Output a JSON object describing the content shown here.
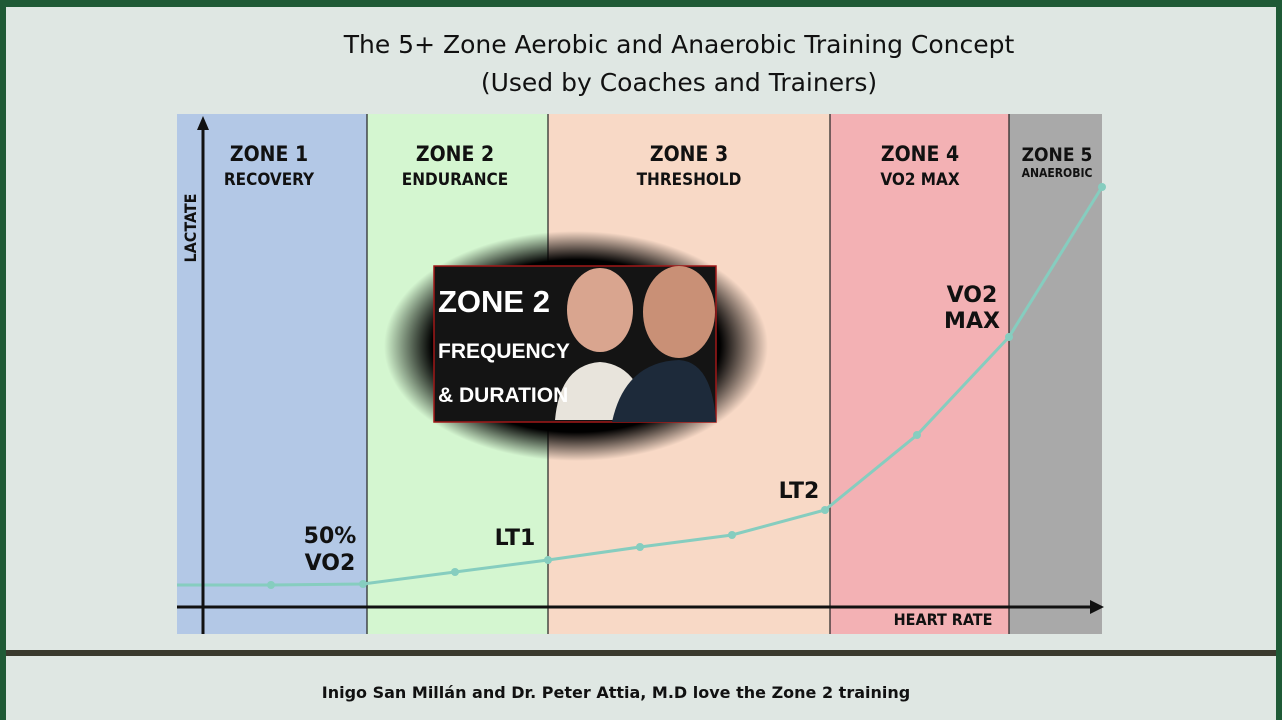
{
  "header": {
    "title": "The 5+ Zone Aerobic and Anaerobic Training Concept",
    "subtitle": "(Used by Coaches and Trainers)"
  },
  "diagram": {
    "y_axis_label": "LACTATE",
    "x_axis_label": "HEART RATE",
    "zones": [
      {
        "name": "ZONE 1",
        "label": "RECOVERY"
      },
      {
        "name": "ZONE 2",
        "label": "ENDURANCE"
      },
      {
        "name": "ZONE 3",
        "label": "THRESHOLD"
      },
      {
        "name": "ZONE 4",
        "label": "VO2 MAX"
      },
      {
        "name": "ZONE 5",
        "label": "ANAEROBIC"
      }
    ],
    "annotations": [
      {
        "lines": [
          "50%",
          "VO2"
        ]
      },
      {
        "lines": [
          "LT1"
        ]
      },
      {
        "lines": [
          "LT2"
        ]
      },
      {
        "lines": [
          "VO2",
          "MAX"
        ]
      }
    ]
  },
  "inset": {
    "lines": [
      "ZONE 2",
      "FREQUENCY",
      "& DURATION"
    ]
  },
  "footer": {
    "caption": "Inigo San Millán and Dr. Peter Attia, M.D love the Zone 2 training"
  }
}
